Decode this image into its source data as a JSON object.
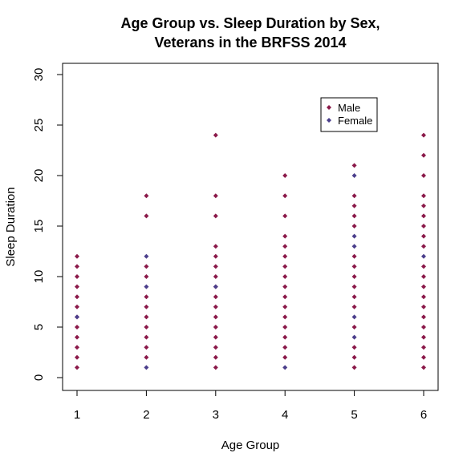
{
  "chart_data": {
    "type": "scatter",
    "title": [
      "Age Group vs. Sleep Duration by Sex,",
      "Veterans in the BRFSS 2014"
    ],
    "xlabel": "Age Group",
    "ylabel": "Sleep Duration",
    "xlim": [
      1,
      6
    ],
    "ylim": [
      0,
      30
    ],
    "x_ticks": [
      1,
      2,
      3,
      4,
      5,
      6
    ],
    "y_ticks": [
      0,
      5,
      10,
      15,
      20,
      25,
      30
    ],
    "legend": {
      "placement": "top-right",
      "entries": [
        "Male",
        "Female"
      ]
    },
    "series": [
      {
        "name": "Male",
        "color": "#8b1a4a",
        "points": [
          [
            1,
            1
          ],
          [
            1,
            2
          ],
          [
            1,
            3
          ],
          [
            1,
            4
          ],
          [
            1,
            5
          ],
          [
            1,
            6
          ],
          [
            1,
            7
          ],
          [
            1,
            8
          ],
          [
            1,
            9
          ],
          [
            1,
            10
          ],
          [
            1,
            11
          ],
          [
            1,
            12
          ],
          [
            2,
            2
          ],
          [
            2,
            3
          ],
          [
            2,
            4
          ],
          [
            2,
            5
          ],
          [
            2,
            6
          ],
          [
            2,
            7
          ],
          [
            2,
            8
          ],
          [
            2,
            10
          ],
          [
            2,
            11
          ],
          [
            2,
            16
          ],
          [
            2,
            18
          ],
          [
            3,
            1
          ],
          [
            3,
            2
          ],
          [
            3,
            3
          ],
          [
            3,
            4
          ],
          [
            3,
            5
          ],
          [
            3,
            6
          ],
          [
            3,
            7
          ],
          [
            3,
            8
          ],
          [
            3,
            9
          ],
          [
            3,
            10
          ],
          [
            3,
            11
          ],
          [
            3,
            12
          ],
          [
            3,
            13
          ],
          [
            3,
            16
          ],
          [
            3,
            18
          ],
          [
            3,
            24
          ],
          [
            4,
            2
          ],
          [
            4,
            3
          ],
          [
            4,
            4
          ],
          [
            4,
            5
          ],
          [
            4,
            6
          ],
          [
            4,
            7
          ],
          [
            4,
            8
          ],
          [
            4,
            9
          ],
          [
            4,
            10
          ],
          [
            4,
            11
          ],
          [
            4,
            12
          ],
          [
            4,
            13
          ],
          [
            4,
            14
          ],
          [
            4,
            16
          ],
          [
            4,
            18
          ],
          [
            4,
            20
          ],
          [
            5,
            1
          ],
          [
            5,
            2
          ],
          [
            5,
            3
          ],
          [
            5,
            5
          ],
          [
            5,
            7
          ],
          [
            5,
            8
          ],
          [
            5,
            9
          ],
          [
            5,
            10
          ],
          [
            5,
            11
          ],
          [
            5,
            12
          ],
          [
            5,
            15
          ],
          [
            5,
            16
          ],
          [
            5,
            17
          ],
          [
            5,
            18
          ],
          [
            5,
            21
          ],
          [
            6,
            1
          ],
          [
            6,
            2
          ],
          [
            6,
            3
          ],
          [
            6,
            4
          ],
          [
            6,
            5
          ],
          [
            6,
            6
          ],
          [
            6,
            7
          ],
          [
            6,
            8
          ],
          [
            6,
            9
          ],
          [
            6,
            10
          ],
          [
            6,
            11
          ],
          [
            6,
            13
          ],
          [
            6,
            14
          ],
          [
            6,
            15
          ],
          [
            6,
            16
          ],
          [
            6,
            17
          ],
          [
            6,
            18
          ],
          [
            6,
            20
          ],
          [
            6,
            22
          ],
          [
            6,
            24
          ]
        ]
      },
      {
        "name": "Female",
        "color": "#4b3f8c",
        "points": [
          [
            1,
            6
          ],
          [
            2,
            1
          ],
          [
            2,
            9
          ],
          [
            2,
            12
          ],
          [
            3,
            9
          ],
          [
            4,
            1
          ],
          [
            5,
            4
          ],
          [
            5,
            6
          ],
          [
            5,
            13
          ],
          [
            5,
            14
          ],
          [
            5,
            20
          ],
          [
            6,
            12
          ]
        ]
      }
    ]
  }
}
